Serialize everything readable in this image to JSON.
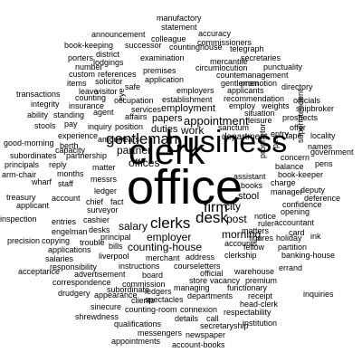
{
  "words": [
    {
      "t": "office",
      "s": 5
    },
    {
      "t": "clerk",
      "s": 4
    },
    {
      "t": "business",
      "s": 4
    },
    {
      "t": "gentleman",
      "s": 3
    },
    {
      "t": "desk",
      "s": 3
    },
    {
      "t": "clerks",
      "s": 3
    },
    {
      "t": "firm",
      "s": 3
    },
    {
      "t": "appointment",
      "s": 2
    },
    {
      "t": "employer",
      "s": 2
    },
    {
      "t": "morning",
      "s": 2
    },
    {
      "t": "work",
      "s": 2
    },
    {
      "t": "partner",
      "s": 2
    },
    {
      "t": "offices",
      "s": 2
    },
    {
      "t": "counting-house",
      "s": 2
    },
    {
      "t": "salary",
      "s": 2
    },
    {
      "t": "city",
      "s": 2
    },
    {
      "t": "post",
      "s": 2
    },
    {
      "t": "employment",
      "s": 2
    },
    {
      "t": "papers",
      "s": 2
    },
    {
      "t": "department",
      "s": 2
    },
    {
      "t": "stool",
      "s": 2
    },
    {
      "t": "duties",
      "s": 2
    },
    {
      "t": "manufactory",
      "s": 1
    },
    {
      "t": "statement",
      "s": 1
    },
    {
      "t": "accuracy",
      "s": 1
    },
    {
      "t": "colleague",
      "s": 1
    },
    {
      "t": "commissioners",
      "s": 1
    },
    {
      "t": "announcement",
      "s": 1
    },
    {
      "t": "countinghouse",
      "s": 1
    },
    {
      "t": "telegraph",
      "s": 1
    },
    {
      "t": "book-keeping",
      "s": 1
    },
    {
      "t": "successor",
      "s": 1
    },
    {
      "t": "district",
      "s": 1
    },
    {
      "t": "porters",
      "s": 1
    },
    {
      "t": "examination",
      "s": 1
    },
    {
      "t": "secretaries",
      "s": 1
    },
    {
      "t": "mercantile",
      "s": 1
    },
    {
      "t": "lodgings",
      "s": 1
    },
    {
      "t": "number",
      "s": 1
    },
    {
      "t": "punctuality",
      "s": 1
    },
    {
      "t": "circumlocution",
      "s": 1
    },
    {
      "t": "custom",
      "s": 1
    },
    {
      "t": "references",
      "s": 1
    },
    {
      "t": "premises",
      "s": 1
    },
    {
      "t": "management",
      "s": 1
    },
    {
      "t": "counter",
      "s": 1
    },
    {
      "t": "solicitor",
      "s": 1
    },
    {
      "t": "application",
      "s": 1
    },
    {
      "t": "gentlemen",
      "s": 1
    },
    {
      "t": "promotion",
      "s": 1
    },
    {
      "t": "directory",
      "s": 1
    },
    {
      "t": "items",
      "s": 1
    },
    {
      "t": "safe",
      "s": 1
    },
    {
      "t": "employers",
      "s": 1
    },
    {
      "t": "applicants",
      "s": 1
    },
    {
      "t": "leave",
      "s": 1
    },
    {
      "t": "visitor",
      "s": 1
    },
    {
      "t": "counting",
      "s": 1
    },
    {
      "t": "transactions",
      "s": 1
    },
    {
      "t": "recommendation",
      "s": 1
    },
    {
      "t": "officials",
      "s": 1
    },
    {
      "t": "occupation",
      "s": 1
    },
    {
      "t": "establishment",
      "s": 1
    },
    {
      "t": "employ",
      "s": 1
    },
    {
      "t": "weights",
      "s": 1
    },
    {
      "t": "shipbroker",
      "s": 1
    },
    {
      "t": "integrity",
      "s": 1
    },
    {
      "t": "insurance",
      "s": 1
    },
    {
      "t": "agent",
      "s": 1
    },
    {
      "t": "services",
      "s": 1
    },
    {
      "t": "situation",
      "s": 1
    },
    {
      "t": "prospects",
      "s": 1
    },
    {
      "t": "ability",
      "s": 1
    },
    {
      "t": "standing",
      "s": 1
    },
    {
      "t": "affairs",
      "s": 1
    },
    {
      "t": "sanctum",
      "s": 1
    },
    {
      "t": "leisure",
      "s": 1
    },
    {
      "t": "stools",
      "s": 1
    },
    {
      "t": "pay",
      "s": 1
    },
    {
      "t": "inquiry",
      "s": 1
    },
    {
      "t": "position",
      "s": 1
    },
    {
      "t": "offer",
      "s": 1
    },
    {
      "t": "government",
      "s": 1
    },
    {
      "t": "experience",
      "s": 1
    },
    {
      "t": "entry",
      "s": 1
    },
    {
      "t": "tape",
      "s": 1
    },
    {
      "t": "locality",
      "s": 1
    },
    {
      "t": "good-morning",
      "s": 1
    },
    {
      "t": "berth",
      "s": 1
    },
    {
      "t": "amount",
      "s": 1
    },
    {
      "t": "years",
      "s": 1
    },
    {
      "t": "names",
      "s": 1
    },
    {
      "t": "subordinates",
      "s": 1
    },
    {
      "t": "capacity",
      "s": 1
    },
    {
      "t": "partnership",
      "s": 1
    },
    {
      "t": "concern",
      "s": 1
    },
    {
      "t": "pens",
      "s": 1
    },
    {
      "t": "principals",
      "s": 1
    },
    {
      "t": "reply",
      "s": 1
    },
    {
      "t": "balance",
      "s": 1
    },
    {
      "t": "arm-chair",
      "s": 1
    },
    {
      "t": "months",
      "s": 1
    },
    {
      "t": "matter",
      "s": 1
    },
    {
      "t": "book-keeper",
      "s": 1
    },
    {
      "t": "wharf",
      "s": 1
    },
    {
      "t": "staff",
      "s": 1
    },
    {
      "t": "messrs",
      "s": 1
    },
    {
      "t": "assistant",
      "s": 1
    },
    {
      "t": "treasury",
      "s": 1
    },
    {
      "t": "ledger",
      "s": 1
    },
    {
      "t": "books",
      "s": 1
    },
    {
      "t": "charge",
      "s": 1
    },
    {
      "t": "deputy",
      "s": 1
    },
    {
      "t": "deference",
      "s": 1
    },
    {
      "t": "account",
      "s": 1
    },
    {
      "t": "applicant",
      "s": 1
    },
    {
      "t": "chief",
      "s": 1
    },
    {
      "t": "fact",
      "s": 1
    },
    {
      "t": "surveyor",
      "s": 1
    },
    {
      "t": "manager",
      "s": 1
    },
    {
      "t": "confidence",
      "s": 1
    },
    {
      "t": "opening",
      "s": 1
    },
    {
      "t": "inspection",
      "s": 1
    },
    {
      "t": "entries",
      "s": 1
    },
    {
      "t": "cashier",
      "s": 1
    },
    {
      "t": "notice",
      "s": 1
    },
    {
      "t": "ruler",
      "s": 1
    },
    {
      "t": "accountant",
      "s": 1
    },
    {
      "t": "engelman",
      "s": 1
    },
    {
      "t": "desks",
      "s": 1
    },
    {
      "t": "principal",
      "s": 1
    },
    {
      "t": "matters",
      "s": 1
    },
    {
      "t": "figures",
      "s": 1
    },
    {
      "t": "holiday",
      "s": 1
    },
    {
      "t": "precision",
      "s": 1
    },
    {
      "t": "copying",
      "s": 1
    },
    {
      "t": "card",
      "s": 1
    },
    {
      "t": "ink",
      "s": 1
    },
    {
      "t": "applications",
      "s": 1
    },
    {
      "t": "trouble",
      "s": 1
    },
    {
      "t": "bills",
      "s": 1
    },
    {
      "t": "accounts",
      "s": 1
    },
    {
      "t": "fellow",
      "s": 1
    },
    {
      "t": "partition",
      "s": 1
    },
    {
      "t": "salaries",
      "s": 1
    },
    {
      "t": "liverpool",
      "s": 1
    },
    {
      "t": "merchant",
      "s": 1
    },
    {
      "t": "address",
      "s": 1
    },
    {
      "t": "clerkship",
      "s": 1
    },
    {
      "t": "banking-house",
      "s": 1
    },
    {
      "t": "responsibility",
      "s": 1
    },
    {
      "t": "instructions",
      "s": 1
    },
    {
      "t": "course",
      "s": 1
    },
    {
      "t": "letters",
      "s": 1
    },
    {
      "t": "acceptance",
      "s": 1
    },
    {
      "t": "advertisement",
      "s": 1
    },
    {
      "t": "board",
      "s": 1
    },
    {
      "t": "official",
      "s": 1
    },
    {
      "t": "warehouse",
      "s": 1
    },
    {
      "t": "errand",
      "s": 1
    },
    {
      "t": "correspondence",
      "s": 1
    },
    {
      "t": "commission",
      "s": 1
    },
    {
      "t": "store",
      "s": 1
    },
    {
      "t": "vacancy",
      "s": 1
    },
    {
      "t": "premium",
      "s": 1
    },
    {
      "t": "drudgery",
      "s": 1
    },
    {
      "t": "ledgers",
      "s": 1
    },
    {
      "t": "subordinate",
      "s": 1
    },
    {
      "t": "managing",
      "s": 1
    },
    {
      "t": "functionary",
      "s": 1
    },
    {
      "t": "appearance",
      "s": 1
    },
    {
      "t": "spectacles",
      "s": 1
    },
    {
      "t": "departments",
      "s": 1
    },
    {
      "t": "receipt",
      "s": 1
    },
    {
      "t": "inquiries",
      "s": 1
    },
    {
      "t": "sinecure",
      "s": 1
    },
    {
      "t": "connexion",
      "s": 1
    },
    {
      "t": "head-clerk",
      "s": 1
    },
    {
      "t": "shrewdness",
      "s": 1
    },
    {
      "t": "counting-room",
      "s": 1
    },
    {
      "t": "respectability",
      "s": 1
    },
    {
      "t": "qualifications",
      "s": 1
    },
    {
      "t": "details",
      "s": 1
    },
    {
      "t": "call",
      "s": 1
    },
    {
      "t": "secretaryship",
      "s": 1
    },
    {
      "t": "institution",
      "s": 1
    },
    {
      "t": "messengers",
      "s": 1
    },
    {
      "t": "newspaper",
      "s": 1
    },
    {
      "t": "appointments",
      "s": 1
    },
    {
      "t": "account-books",
      "s": 1
    },
    {
      "t": "clients",
      "s": 1
    },
    {
      "t": "eye",
      "s": 1
    },
    {
      "t": "pen",
      "s": 1
    },
    {
      "t": "proprietor",
      "s": 1
    },
    {
      "t": "superintendent",
      "s": 1
    }
  ]
}
